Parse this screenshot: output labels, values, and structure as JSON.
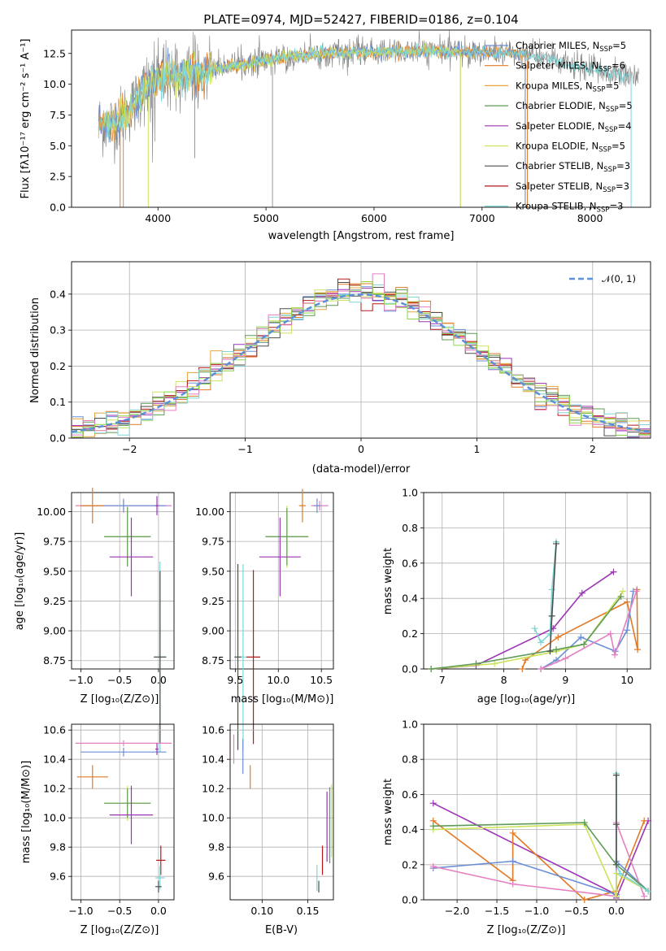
{
  "colors": {
    "chabrier_miles": "#6a8fd6",
    "salpeter_miles": "#e07a26",
    "kroupa_miles": "#e6a43c",
    "chabrier_elodie": "#5f9b57",
    "salpeter_elodie": "#9b35b3",
    "kroupa_elodie": "#cbe35a",
    "chabrier_stelib": "#4d4d4d",
    "salpeter_stelib": "#b51a1a",
    "kroupa_stelib": "#7fd6d6",
    "data": "#7f7f7f",
    "pink": "#e57fc0",
    "green2": "#8bd64a",
    "normal": "#5b8fd6"
  },
  "chart_data": [
    {
      "id": "spectrum",
      "type": "line",
      "title": "PLATE=0974, MJD=52427, FIBERID=0186, z=0.104",
      "xlabel": "wavelength [Angstrom, rest frame]",
      "ylabel": "Flux [fλ10⁻¹⁷ erg cm⁻² s⁻¹ A⁻¹]",
      "xlim": [
        3200,
        8560
      ],
      "ylim": [
        0,
        14.4
      ],
      "xticks": [
        "4000",
        "5000",
        "6000",
        "7000",
        "8000"
      ],
      "yticks": [
        "0.0",
        "2.5",
        "5.0",
        "7.5",
        "10.0",
        "12.5"
      ],
      "legend_placement": "right",
      "legend": [
        {
          "label": "Chabrier MILES, N",
          "sub": "SSP",
          "sup": "",
          "tail": "=5",
          "color": "#6a8fd6"
        },
        {
          "label": "Salpeter MILES, N",
          "sub": "SSP",
          "sup": "",
          "tail": "=6",
          "color": "#e07a26"
        },
        {
          "label": "Kroupa MILES, N",
          "sub": "SSP",
          "sup": "",
          "tail": "=5",
          "color": "#e6a43c"
        },
        {
          "label": "Chabrier ELODIE, N",
          "sub": "SSP",
          "sup": "",
          "tail": "=5",
          "color": "#5f9b57"
        },
        {
          "label": "Salpeter ELODIE, N",
          "sub": "SSP",
          "sup": "",
          "tail": "=4",
          "color": "#9b35b3"
        },
        {
          "label": "Kroupa ELODIE, N",
          "sub": "SSP",
          "sup": "",
          "tail": "=5",
          "color": "#cbe35a"
        },
        {
          "label": "Chabrier STELIB, N",
          "sub": "SSP",
          "sup": "",
          "tail": "=3",
          "color": "#4d4d4d"
        },
        {
          "label": "Salpeter STELIB, N",
          "sub": "SSP",
          "sup": "",
          "tail": "=3",
          "color": "#b51a1a"
        },
        {
          "label": "Kroupa STELIB, N",
          "sub": "SSP",
          "sup": "",
          "tail": "=3",
          "color": "#7fd6d6"
        }
      ],
      "continuum": [
        [
          3450,
          6.8
        ],
        [
          3550,
          6.7
        ],
        [
          3650,
          7.2
        ],
        [
          3750,
          8.0
        ],
        [
          3850,
          9.3
        ],
        [
          3950,
          10.2
        ],
        [
          4100,
          10.6
        ],
        [
          4300,
          10.9
        ],
        [
          4500,
          11.2
        ],
        [
          4700,
          11.5
        ],
        [
          5000,
          12.0
        ],
        [
          5300,
          12.3
        ],
        [
          5600,
          12.5
        ],
        [
          6000,
          12.6
        ],
        [
          6400,
          12.7
        ],
        [
          6800,
          12.7
        ],
        [
          7000,
          12.6
        ],
        [
          7300,
          12.5
        ],
        [
          7600,
          12.1
        ],
        [
          7900,
          11.4
        ],
        [
          8200,
          10.9
        ],
        [
          8450,
          10.6
        ]
      ]
    },
    {
      "id": "residuals",
      "type": "histogram",
      "xlabel": "(data-model)/error",
      "ylabel": "Normed distribution",
      "xlim": [
        -2.5,
        2.5
      ],
      "ylim": [
        0,
        0.49
      ],
      "xticks": [
        "−2",
        "−1",
        "0",
        "1",
        "2"
      ],
      "yticks": [
        "0.0",
        "0.1",
        "0.2",
        "0.3",
        "0.4"
      ],
      "grid": true,
      "legend_placement": "top-right",
      "legend": [
        {
          "label": "𝒩(0, 1)",
          "color": "#5b8fd6"
        }
      ],
      "bin_width": 0.1
    },
    {
      "id": "age_vs_Z",
      "type": "errorbar",
      "xlabel": "Z [log₁₀(Z/Z⊙)]",
      "ylabel": "age  [log₁₀(age/yr)]",
      "xlim": [
        -1.12,
        0.2
      ],
      "ylim": [
        8.68,
        10.16
      ],
      "xticks": [
        "−1.0",
        "−0.5",
        "0.0"
      ],
      "yticks": [
        "8.75",
        "9.00",
        "9.25",
        "9.50",
        "9.75",
        "10.00"
      ],
      "grid": true,
      "points": [
        {
          "x": -0.45,
          "y": 10.05,
          "xerr": 0.62,
          "yerr": 0.06,
          "color": "#e57fc0"
        },
        {
          "x": -0.45,
          "y": 10.05,
          "xerr": 0.55,
          "yerr": 0.05,
          "color": "#6a8fd6"
        },
        {
          "x": -0.85,
          "y": 10.05,
          "xerr": 0.15,
          "yerr": 0.15,
          "color": "#e07a26"
        },
        {
          "x": -0.4,
          "y": 9.79,
          "xerr": 0.3,
          "yerr": 0.25,
          "color": "#cbe35a"
        },
        {
          "x": -0.4,
          "y": 9.79,
          "xerr": 0.3,
          "yerr": 0.25,
          "color": "#5f9b57"
        },
        {
          "x": -0.35,
          "y": 9.62,
          "xerr": 0.28,
          "yerr": 0.33,
          "color": "#9b35b3"
        },
        {
          "x": 0.02,
          "y": 8.78,
          "xerr": 0.08,
          "yerr": 0.8,
          "color": "#7fd6d6"
        },
        {
          "x": 0.02,
          "y": 8.78,
          "xerr": 0.08,
          "yerr": 0.72,
          "color": "#4d4d4d"
        },
        {
          "x": -0.02,
          "y": 10.05,
          "xerr": 0.02,
          "yerr": 0.08,
          "color": "#9b35b3"
        }
      ]
    },
    {
      "id": "age_vs_mass",
      "type": "errorbar",
      "xlabel": "mass [log₁₀(M/M⊙)]",
      "ylabel": "",
      "xlim": [
        9.44,
        10.64
      ],
      "ylim": [
        8.68,
        10.16
      ],
      "xticks": [
        "9.5",
        "10.0",
        "10.5"
      ],
      "yticks": [
        "8.75",
        "9.00",
        "9.25",
        "9.50",
        "9.75",
        "10.00"
      ],
      "grid": true,
      "points": [
        {
          "x": 10.48,
          "y": 10.05,
          "xerr": 0.1,
          "yerr": 0.04,
          "color": "#e57fc0"
        },
        {
          "x": 10.45,
          "y": 10.05,
          "xerr": 0.04,
          "yerr": 0.06,
          "color": "#6a8fd6"
        },
        {
          "x": 10.28,
          "y": 10.05,
          "xerr": 0.04,
          "yerr": 0.14,
          "color": "#e07a26"
        },
        {
          "x": 10.1,
          "y": 9.79,
          "xerr": 0.25,
          "yerr": 0.26,
          "color": "#cbe35a"
        },
        {
          "x": 10.1,
          "y": 9.79,
          "xerr": 0.25,
          "yerr": 0.24,
          "color": "#5f9b57"
        },
        {
          "x": 10.02,
          "y": 9.62,
          "xerr": 0.24,
          "yerr": 0.33,
          "color": "#9b35b3"
        },
        {
          "x": 9.59,
          "y": 8.78,
          "xerr": 0.05,
          "yerr": 0.78,
          "color": "#7fd6d6"
        },
        {
          "x": 9.53,
          "y": 8.78,
          "xerr": 0.04,
          "yerr": 0.78,
          "color": "#4d4d4d"
        },
        {
          "x": 9.71,
          "y": 8.78,
          "xerr": 0.08,
          "yerr": 0.73,
          "color": "#b51a1a"
        }
      ]
    },
    {
      "id": "weight_vs_age",
      "type": "line",
      "xlabel": "age  [log₁₀(age/yr)]",
      "ylabel": "mass weight",
      "xlim": [
        6.7,
        10.38
      ],
      "ylim": [
        0,
        1.0
      ],
      "xticks": [
        "7",
        "8",
        "9",
        "10"
      ],
      "yticks": [
        "0.0",
        "0.2",
        "0.4",
        "0.6",
        "0.8",
        "1.0"
      ],
      "grid": true,
      "series": [
        {
          "color": "#9b35b3",
          "x": [
            9.78,
            9.27,
            8.8,
            7.55,
            6.82
          ],
          "y": [
            0.55,
            0.43,
            0.23,
            0.02,
            0.0
          ]
        },
        {
          "color": "#e07a26",
          "x": [
            10.16,
            10.17,
            10.0,
            8.88,
            8.35,
            8.3
          ],
          "y": [
            0.45,
            0.11,
            0.38,
            0.18,
            0.05,
            0.0
          ]
        },
        {
          "color": "#6a8fd6",
          "x": [
            10.1,
            10.0,
            9.81,
            9.25,
            8.85,
            8.6
          ],
          "y": [
            0.44,
            0.22,
            0.1,
            0.18,
            0.05,
            0.0
          ]
        },
        {
          "color": "#e57fc0",
          "x": [
            10.15,
            9.8,
            9.73,
            9.0,
            8.6
          ],
          "y": [
            0.44,
            0.08,
            0.2,
            0.06,
            0.0
          ]
        },
        {
          "color": "#cbe35a",
          "x": [
            9.93,
            9.3,
            8.85,
            7.85,
            6.82
          ],
          "y": [
            0.44,
            0.14,
            0.1,
            0.03,
            0.0
          ]
        },
        {
          "color": "#5f9b57",
          "x": [
            9.9,
            9.3,
            8.85,
            7.55,
            6.82
          ],
          "y": [
            0.41,
            0.14,
            0.11,
            0.03,
            0.0
          ]
        },
        {
          "color": "#7fd6d6",
          "x": [
            8.85,
            8.78,
            8.75,
            8.6,
            8.5
          ],
          "y": [
            0.72,
            0.45,
            0.2,
            0.15,
            0.23
          ]
        },
        {
          "color": "#4d4d4d",
          "x": [
            8.85,
            8.78,
            8.75
          ],
          "y": [
            0.71,
            0.3,
            0.1
          ]
        }
      ]
    },
    {
      "id": "mass_vs_Z",
      "type": "errorbar",
      "xlabel": "Z [log₁₀(Z/Z⊙)]",
      "ylabel": "mass [log₁₀(M/M⊙)]",
      "xlim": [
        -1.12,
        0.2
      ],
      "ylim": [
        9.44,
        10.64
      ],
      "xticks": [
        "−1.0",
        "−0.5",
        "0.0"
      ],
      "yticks": [
        "9.6",
        "9.8",
        "10.0",
        "10.2",
        "10.4",
        "10.6"
      ],
      "grid": true,
      "points": [
        {
          "x": -0.45,
          "y": 10.51,
          "xerr": 0.62,
          "yerr": 0.02,
          "color": "#e57fc0"
        },
        {
          "x": -0.45,
          "y": 10.45,
          "xerr": 0.55,
          "yerr": 0.03,
          "color": "#6a8fd6"
        },
        {
          "x": -0.85,
          "y": 10.28,
          "xerr": 0.2,
          "yerr": 0.08,
          "color": "#e07a26"
        },
        {
          "x": -0.4,
          "y": 10.1,
          "xerr": 0.3,
          "yerr": 0.12,
          "color": "#cbe35a"
        },
        {
          "x": -0.4,
          "y": 10.1,
          "xerr": 0.3,
          "yerr": 0.1,
          "color": "#5f9b57"
        },
        {
          "x": -0.35,
          "y": 10.02,
          "xerr": 0.28,
          "yerr": 0.2,
          "color": "#9b35b3"
        },
        {
          "x": 0.03,
          "y": 9.71,
          "xerr": 0.06,
          "yerr": 0.1,
          "color": "#b51a1a"
        },
        {
          "x": 0.02,
          "y": 9.59,
          "xerr": 0.06,
          "yerr": 0.08,
          "color": "#7fd6d6"
        },
        {
          "x": 0.0,
          "y": 9.53,
          "xerr": 0.04,
          "yerr": 0.04,
          "color": "#4d4d4d"
        },
        {
          "x": -0.02,
          "y": 10.47,
          "xerr": 0.02,
          "yerr": 0.04,
          "color": "#9b35b3"
        }
      ]
    },
    {
      "id": "mass_vs_EBV",
      "type": "errorbar",
      "xlabel": "E(B-V)",
      "ylabel": "",
      "xlim": [
        0.065,
        0.178
      ],
      "ylim": [
        9.44,
        10.64
      ],
      "xticks": [
        "0.10",
        "0.15"
      ],
      "yticks": [
        "9.6",
        "9.8",
        "10.0",
        "10.2",
        "10.4",
        "10.6"
      ],
      "grid": true,
      "points": [
        {
          "x": 0.069,
          "y": 10.47,
          "xerr": 0.0,
          "yerr": 0.1,
          "color": "#e57fc0"
        },
        {
          "x": 0.079,
          "y": 10.42,
          "xerr": 0.0,
          "yerr": 0.12,
          "color": "#6a8fd6"
        },
        {
          "x": 0.087,
          "y": 10.28,
          "xerr": 0.0,
          "yerr": 0.08,
          "color": "#e07a26"
        },
        {
          "x": 0.176,
          "y": 9.98,
          "xerr": 0.0,
          "yerr": 0.25,
          "color": "#cbe35a"
        },
        {
          "x": 0.174,
          "y": 9.95,
          "xerr": 0.0,
          "yerr": 0.26,
          "color": "#5f9b57"
        },
        {
          "x": 0.171,
          "y": 9.94,
          "xerr": 0.0,
          "yerr": 0.24,
          "color": "#9b35b3"
        },
        {
          "x": 0.166,
          "y": 9.71,
          "xerr": 0.0,
          "yerr": 0.1,
          "color": "#b51a1a"
        },
        {
          "x": 0.16,
          "y": 9.59,
          "xerr": 0.0,
          "yerr": 0.09,
          "color": "#7fd6d6"
        },
        {
          "x": 0.162,
          "y": 9.53,
          "xerr": 0.0,
          "yerr": 0.04,
          "color": "#4d4d4d"
        }
      ]
    },
    {
      "id": "weight_vs_Z",
      "type": "line",
      "xlabel": "Z [log₁₀(Z/Z⊙)]",
      "ylabel": "mass weight",
      "xlim": [
        -2.42,
        0.43
      ],
      "ylim": [
        0,
        1.0
      ],
      "xticks": [
        "−2.0",
        "−1.5",
        "−1.0",
        "−0.5",
        "0.0"
      ],
      "yticks": [
        "0.0",
        "0.2",
        "0.4",
        "0.6",
        "0.8",
        "1.0"
      ],
      "grid": true,
      "series": [
        {
          "color": "#9b35b3",
          "x": [
            -2.3,
            0.0,
            0.0,
            0.4
          ],
          "y": [
            0.55,
            0.03,
            0.01,
            0.45
          ]
        },
        {
          "color": "#e07a26",
          "x": [
            -2.3,
            -1.3,
            -1.3,
            -0.4,
            0.0,
            0.35
          ],
          "y": [
            0.45,
            0.11,
            0.38,
            0.0,
            0.05,
            0.45
          ]
        },
        {
          "color": "#6a8fd6",
          "x": [
            -2.3,
            -1.3,
            0.0,
            0.0,
            0.4
          ],
          "y": [
            0.18,
            0.22,
            0.03,
            0.22,
            0.05
          ]
        },
        {
          "color": "#e57fc0",
          "x": [
            -2.3,
            -1.3,
            0.0,
            0.0,
            0.35
          ],
          "y": [
            0.19,
            0.09,
            0.02,
            0.44,
            0.02
          ]
        },
        {
          "color": "#cbe35a",
          "x": [
            -2.3,
            -0.4,
            0.0,
            0.0,
            0.4
          ],
          "y": [
            0.4,
            0.43,
            0.02,
            0.15,
            0.05
          ]
        },
        {
          "color": "#5f9b57",
          "x": [
            -2.3,
            -0.4,
            0.0,
            0.4
          ],
          "y": [
            0.42,
            0.44,
            0.2,
            0.05
          ]
        },
        {
          "color": "#7fd6d6",
          "x": [
            0.0,
            0.0,
            0.05,
            0.4
          ],
          "y": [
            0.72,
            0.2,
            0.15,
            0.05
          ]
        },
        {
          "color": "#4d4d4d",
          "x": [
            0.0,
            0.0,
            0.0
          ],
          "y": [
            0.71,
            0.43,
            0.2
          ]
        }
      ]
    }
  ]
}
